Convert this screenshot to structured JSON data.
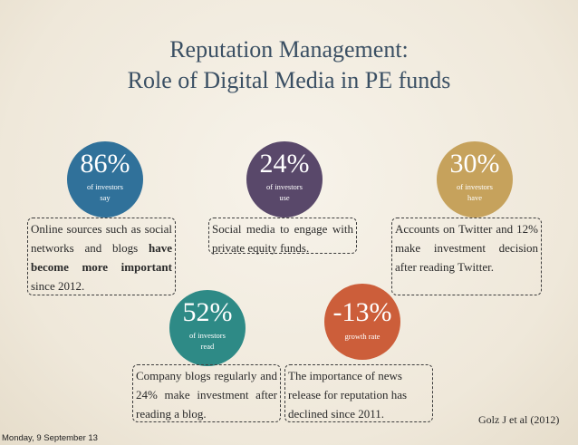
{
  "title": {
    "line1": "Reputation Management:",
    "line2": "Role of Digital Media in PE funds"
  },
  "stats": [
    {
      "percent": "86%",
      "sub1": "of investors",
      "sub2": "say",
      "color": "#30719a"
    },
    {
      "percent": "24%",
      "sub1": "of investors",
      "sub2": "use",
      "color": "#59486a"
    },
    {
      "percent": "30%",
      "sub1": "of investors",
      "sub2": "have",
      "color": "#c6a25c"
    },
    {
      "percent": "52%",
      "sub1": "of investors",
      "sub2": "read",
      "color": "#2e8a86"
    },
    {
      "percent": "-13%",
      "sub1": "growth rate",
      "color": "#cc5e3a"
    }
  ],
  "boxes": {
    "b1": {
      "pre": "Online sources such as social networks and blogs ",
      "bold": "have become more important",
      "post": " since 2012."
    },
    "b2": "Social media to engage with private equity funds.",
    "b3": "Accounts on Twitter and 12% make investment decision after reading Twitter.",
    "b4": "Company blogs regularly and 24% make investment after reading a blog.",
    "b5": "The importance of news release for reputation has declined  since 2011."
  },
  "citation": "Golz J et al (2012)",
  "date": "Monday, 9 September 13"
}
